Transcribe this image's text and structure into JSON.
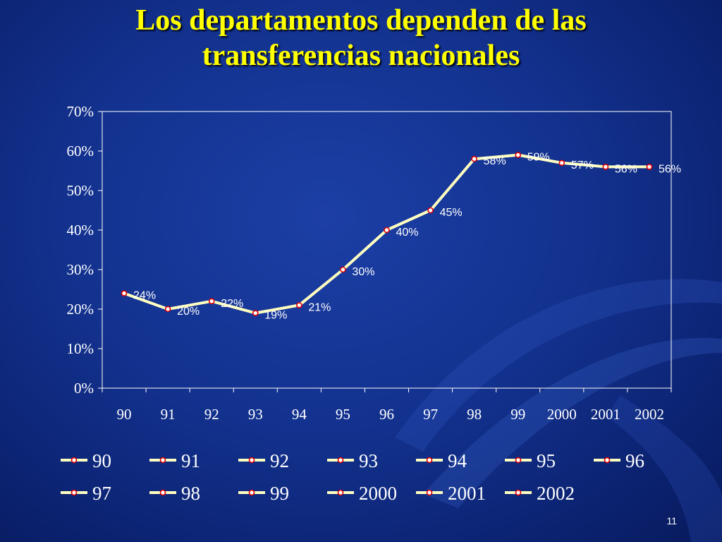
{
  "slide": {
    "title_line1": "Los departamentos dependen de las",
    "title_line2": "transferencias nacionales",
    "slide_number": "11"
  },
  "colors": {
    "line": "#ffffc0",
    "marker": "#e00000",
    "axis": "#ffffff",
    "text": "#ffffff",
    "title": "#ffff00"
  },
  "chart_data": {
    "type": "line",
    "title": "",
    "xlabel": "",
    "ylabel": "",
    "categories": [
      "90",
      "91",
      "92",
      "93",
      "94",
      "95",
      "96",
      "97",
      "98",
      "99",
      "2000",
      "2001",
      "2002"
    ],
    "values": [
      0.24,
      0.2,
      0.22,
      0.19,
      0.21,
      0.3,
      0.4,
      0.45,
      0.58,
      0.59,
      0.57,
      0.56,
      0.56
    ],
    "data_labels": [
      "24%",
      "20%",
      "22%",
      "19%",
      "21%",
      "30%",
      "40%",
      "45%",
      "58%",
      "59%",
      "57%",
      "56%",
      "56%"
    ],
    "y_ticks": [
      0,
      0.1,
      0.2,
      0.3,
      0.4,
      0.5,
      0.6,
      0.7
    ],
    "y_tick_labels": [
      "0%",
      "10%",
      "20%",
      "30%",
      "40%",
      "50%",
      "60%",
      "70%"
    ],
    "ylim": [
      0,
      0.7
    ],
    "grid": false,
    "legend_position": "bottom",
    "legend_entries": [
      "90",
      "91",
      "92",
      "93",
      "94",
      "95",
      "96",
      "97",
      "98",
      "99",
      "2000",
      "2001",
      "2002"
    ]
  }
}
